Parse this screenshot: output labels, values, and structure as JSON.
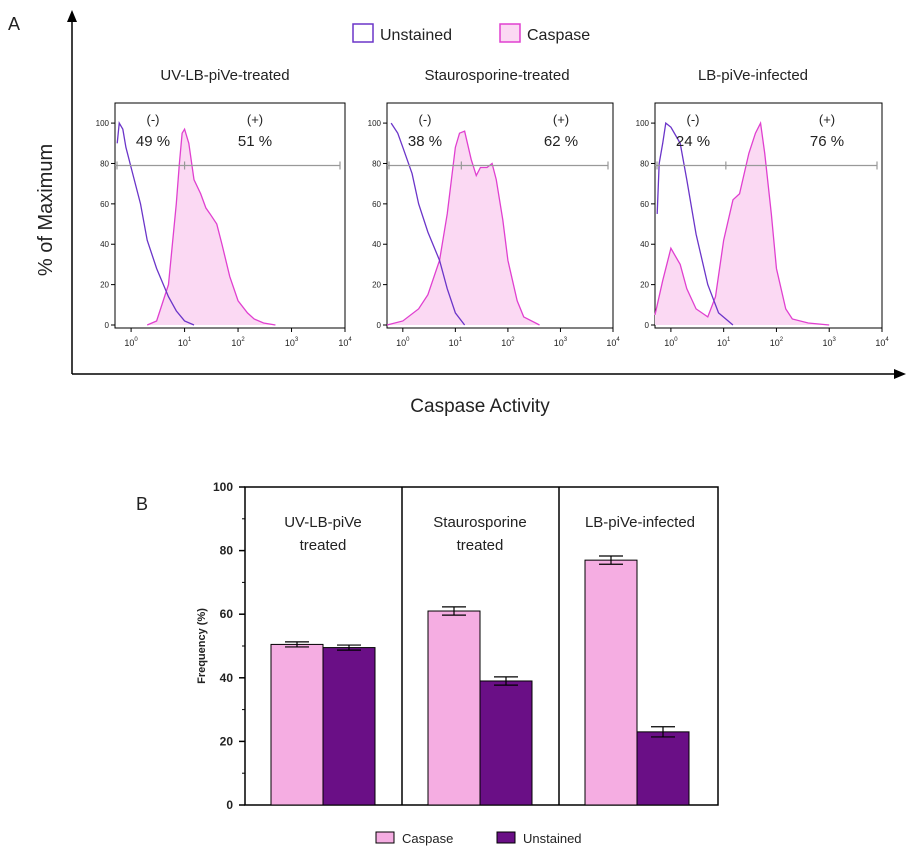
{
  "panel_labels": {
    "a": "A",
    "b": "B"
  },
  "colors": {
    "unstained_line": "#6b35c9",
    "caspase_line": "#e040d0",
    "caspase_fill": "#fbd9f3",
    "bar_caspase": "#f5ade2",
    "bar_unstained": "#6a0f86",
    "gate": "#999999"
  },
  "chart_data": [
    {
      "type": "area",
      "panel": "A",
      "legend": [
        {
          "name": "Unstained",
          "style": "outline"
        },
        {
          "name": "Caspase",
          "style": "filled"
        }
      ],
      "legend_placement": "top-center",
      "xlabel": "Caspase Activity",
      "ylabel": "% of Maximum",
      "x_scale": "log",
      "xlim": [
        0.5,
        10000
      ],
      "ylim": [
        0,
        105
      ],
      "yticks": [
        "0",
        "20",
        "40",
        "60",
        "80",
        "100"
      ],
      "xticks": [
        "10^0",
        "10^1",
        "10^2",
        "10^3",
        "10^4"
      ],
      "gate_level": 80,
      "subplots": [
        {
          "title": "UV-LB-piVe-treated",
          "gate_split": 10,
          "neg": {
            "sign": "(-)",
            "pct": "49 %"
          },
          "pos": {
            "sign": "(+)",
            "pct": "51 %"
          },
          "series": [
            {
              "name": "Unstained",
              "x": [
                0.55,
                0.6,
                0.7,
                0.8,
                1,
                1.5,
                2,
                3,
                5,
                7,
                10,
                15
              ],
              "y": [
                90,
                100,
                97,
                88,
                78,
                60,
                42,
                28,
                14,
                7,
                2,
                0
              ]
            },
            {
              "name": "Caspase",
              "x": [
                2,
                3,
                5,
                7,
                8,
                9,
                10,
                12,
                15,
                20,
                25,
                30,
                40,
                50,
                70,
                100,
                150,
                200,
                300,
                500
              ],
              "y": [
                0,
                2,
                20,
                60,
                80,
                95,
                97,
                90,
                72,
                65,
                58,
                55,
                50,
                40,
                24,
                12,
                6,
                3,
                1,
                0
              ]
            }
          ]
        },
        {
          "title": "Staurosporine-treated",
          "gate_split": 13,
          "neg": {
            "sign": "(-)",
            "pct": "38 %"
          },
          "pos": {
            "sign": "(+)",
            "pct": "62 %"
          },
          "series": [
            {
              "name": "Unstained",
              "x": [
                0.6,
                0.8,
                1,
                1.5,
                2,
                3,
                5,
                7,
                10,
                15
              ],
              "y": [
                100,
                95,
                88,
                75,
                60,
                46,
                32,
                18,
                6,
                0
              ]
            },
            {
              "name": "Caspase",
              "x": [
                0.5,
                1,
                2,
                3,
                5,
                7,
                10,
                12,
                15,
                20,
                25,
                30,
                40,
                50,
                60,
                80,
                100,
                150,
                200,
                400
              ],
              "y": [
                0,
                2,
                8,
                15,
                32,
                55,
                88,
                95,
                96,
                82,
                74,
                78,
                78,
                80,
                72,
                52,
                32,
                12,
                4,
                0
              ]
            }
          ]
        },
        {
          "title": "LB-piVe-infected",
          "gate_split": 11,
          "neg": {
            "sign": "(-)",
            "pct": "24 %"
          },
          "pos": {
            "sign": "(+)",
            "pct": "76 %"
          },
          "series": [
            {
              "name": "Unstained",
              "x": [
                0.55,
                0.6,
                0.7,
                0.8,
                1,
                1.5,
                2,
                3,
                5,
                8,
                15
              ],
              "y": [
                55,
                80,
                90,
                100,
                98,
                90,
                72,
                45,
                20,
                6,
                0
              ]
            },
            {
              "name": "Caspase",
              "x": [
                0.5,
                0.7,
                1,
                1.5,
                2,
                3,
                5,
                7,
                10,
                15,
                20,
                30,
                40,
                50,
                60,
                80,
                100,
                150,
                200,
                400,
                1000
              ],
              "y": [
                5,
                22,
                38,
                30,
                18,
                8,
                4,
                14,
                42,
                62,
                65,
                85,
                95,
                100,
                85,
                55,
                28,
                8,
                3,
                1,
                0
              ]
            }
          ]
        }
      ]
    },
    {
      "type": "bar",
      "panel": "B",
      "groups": [
        {
          "title_lines": [
            "UV-LB-piVe",
            "treated"
          ],
          "caspase": 50.5,
          "caspase_err": 0.8,
          "unstained": 49.5,
          "unstained_err": 0.8
        },
        {
          "title_lines": [
            "Staurosporine",
            "treated"
          ],
          "caspase": 61,
          "caspase_err": 1.3,
          "unstained": 39,
          "unstained_err": 1.3
        },
        {
          "title_lines": [
            "LB-piVe-infected"
          ],
          "caspase": 77,
          "caspase_err": 1.3,
          "unstained": 23,
          "unstained_err": 1.6
        }
      ],
      "series": [
        {
          "name": "Caspase"
        },
        {
          "name": "Unstained"
        }
      ],
      "ylabel": "Frequency (%)",
      "ylim": [
        0,
        100
      ],
      "yticks": [
        "0",
        "20",
        "40",
        "60",
        "80",
        "100"
      ],
      "legend_placement": "bottom-center"
    }
  ]
}
